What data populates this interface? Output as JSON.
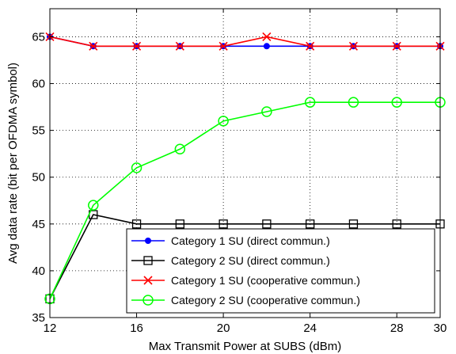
{
  "chart_data": {
    "type": "line",
    "title": "",
    "xlabel": "Max Transmit Power at SUBS (dBm)",
    "ylabel": "Avg data rate (bit per OFDMA symbol)",
    "xlim": [
      12,
      30
    ],
    "ylim": [
      35,
      68
    ],
    "xticks": [
      12,
      16,
      20,
      24,
      28,
      30
    ],
    "yticks": [
      35,
      40,
      45,
      50,
      55,
      60,
      65
    ],
    "grid": true,
    "legend_position": "bottom-right",
    "x": [
      12,
      14,
      16,
      18,
      20,
      22,
      24,
      26,
      28,
      30
    ],
    "series": [
      {
        "name": "Category 1 SU (direct commun.)",
        "color": "#0000ff",
        "marker": "filled-circle",
        "values": [
          65,
          64,
          64,
          64,
          64,
          64,
          64,
          64,
          64,
          64
        ]
      },
      {
        "name": "Category 2 SU (direct commun.)",
        "color": "#000000",
        "marker": "square",
        "values": [
          37,
          46,
          45,
          45,
          45,
          45,
          45,
          45,
          45,
          45
        ]
      },
      {
        "name": "Category 1 SU (cooperative commun.)",
        "color": "#ff0000",
        "marker": "x",
        "values": [
          65,
          64,
          64,
          64,
          64,
          65,
          64,
          64,
          64,
          64
        ]
      },
      {
        "name": "Category 2 SU (cooperative commun.)",
        "color": "#00ff00",
        "marker": "open-circle",
        "values": [
          37,
          47,
          51,
          53,
          56,
          57,
          58,
          58,
          58,
          58
        ]
      }
    ]
  }
}
